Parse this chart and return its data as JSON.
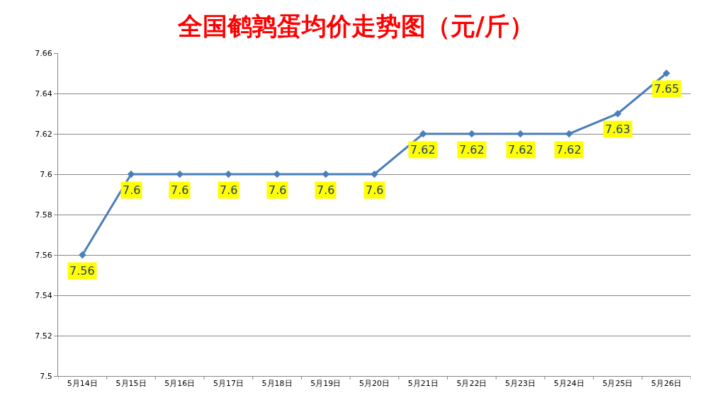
{
  "chart_data": {
    "type": "line",
    "title": "全国鹌鹑蛋均价走势图（元/斤）",
    "categories": [
      "5月14日",
      "5月15日",
      "5月16日",
      "5月17日",
      "5月18日",
      "5月19日",
      "5月20日",
      "5月21日",
      "5月22日",
      "5月23日",
      "5月24日",
      "5月25日",
      "5月26日"
    ],
    "series": [
      {
        "color": "#4a7ebb",
        "values": [
          7.56,
          7.6,
          7.6,
          7.6,
          7.6,
          7.6,
          7.6,
          7.62,
          7.62,
          7.62,
          7.62,
          7.63,
          7.65
        ]
      }
    ],
    "ylim": [
      7.5,
      7.66
    ],
    "yticks": [
      7.5,
      7.52,
      7.54,
      7.56,
      7.58,
      7.6,
      7.62,
      7.64,
      7.66
    ],
    "grid": "y",
    "data_labels": true,
    "marker": "diamond",
    "line_style": "solid"
  }
}
